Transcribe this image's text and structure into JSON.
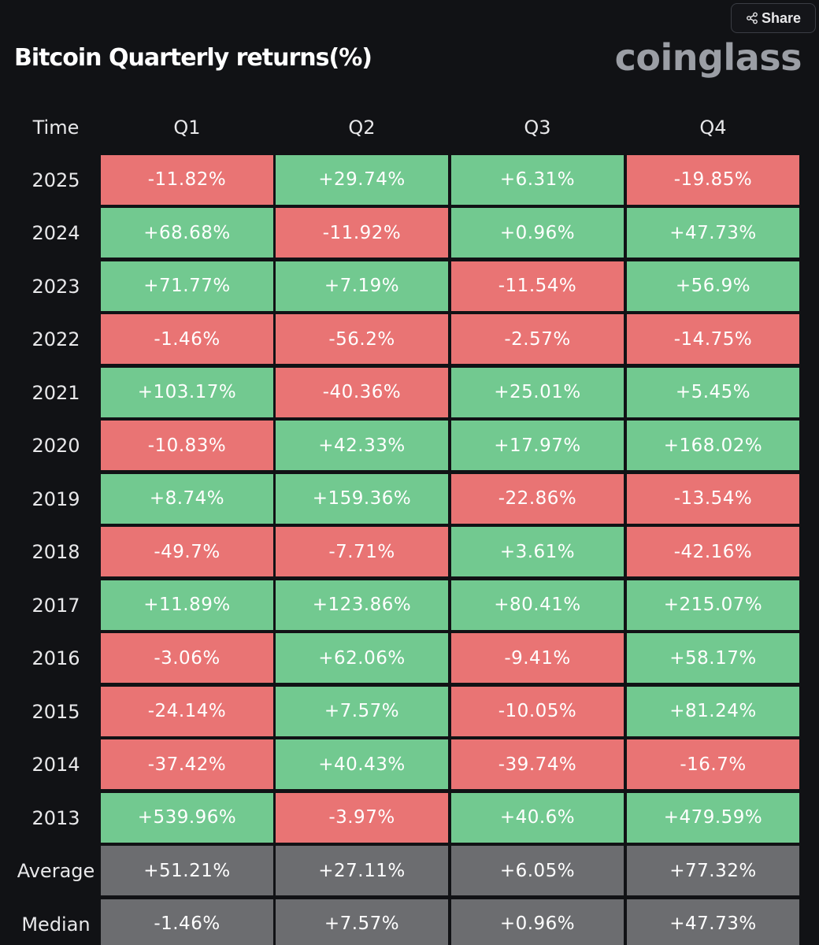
{
  "share_label": "Share",
  "title": "Bitcoin Quarterly returns(%)",
  "brand": "coinglass",
  "colors": {
    "positive": "#72c990",
    "negative": "#e97474",
    "summary": "#6c6d70",
    "background": "#111215"
  },
  "table": {
    "time_header": "Time",
    "quarters": [
      "Q1",
      "Q2",
      "Q3",
      "Q4"
    ],
    "rows": [
      {
        "label": "2025",
        "values": [
          "-11.82%",
          "+29.74%",
          "+6.31%",
          "-19.85%"
        ]
      },
      {
        "label": "2024",
        "values": [
          "+68.68%",
          "-11.92%",
          "+0.96%",
          "+47.73%"
        ]
      },
      {
        "label": "2023",
        "values": [
          "+71.77%",
          "+7.19%",
          "-11.54%",
          "+56.9%"
        ]
      },
      {
        "label": "2022",
        "values": [
          "-1.46%",
          "-56.2%",
          "-2.57%",
          "-14.75%"
        ]
      },
      {
        "label": "2021",
        "values": [
          "+103.17%",
          "-40.36%",
          "+25.01%",
          "+5.45%"
        ]
      },
      {
        "label": "2020",
        "values": [
          "-10.83%",
          "+42.33%",
          "+17.97%",
          "+168.02%"
        ]
      },
      {
        "label": "2019",
        "values": [
          "+8.74%",
          "+159.36%",
          "-22.86%",
          "-13.54%"
        ]
      },
      {
        "label": "2018",
        "values": [
          "-49.7%",
          "-7.71%",
          "+3.61%",
          "-42.16%"
        ]
      },
      {
        "label": "2017",
        "values": [
          "+11.89%",
          "+123.86%",
          "+80.41%",
          "+215.07%"
        ]
      },
      {
        "label": "2016",
        "values": [
          "-3.06%",
          "+62.06%",
          "-9.41%",
          "+58.17%"
        ]
      },
      {
        "label": "2015",
        "values": [
          "-24.14%",
          "+7.57%",
          "-10.05%",
          "+81.24%"
        ]
      },
      {
        "label": "2014",
        "values": [
          "-37.42%",
          "+40.43%",
          "-39.74%",
          "-16.7%"
        ]
      },
      {
        "label": "2013",
        "values": [
          "+539.96%",
          "-3.97%",
          "+40.6%",
          "+479.59%"
        ]
      }
    ],
    "summary_rows": [
      {
        "label": "Average",
        "values": [
          "+51.21%",
          "+27.11%",
          "+6.05%",
          "+77.32%"
        ]
      },
      {
        "label": "Median",
        "values": [
          "-1.46%",
          "+7.57%",
          "+0.96%",
          "+47.73%"
        ]
      }
    ]
  }
}
